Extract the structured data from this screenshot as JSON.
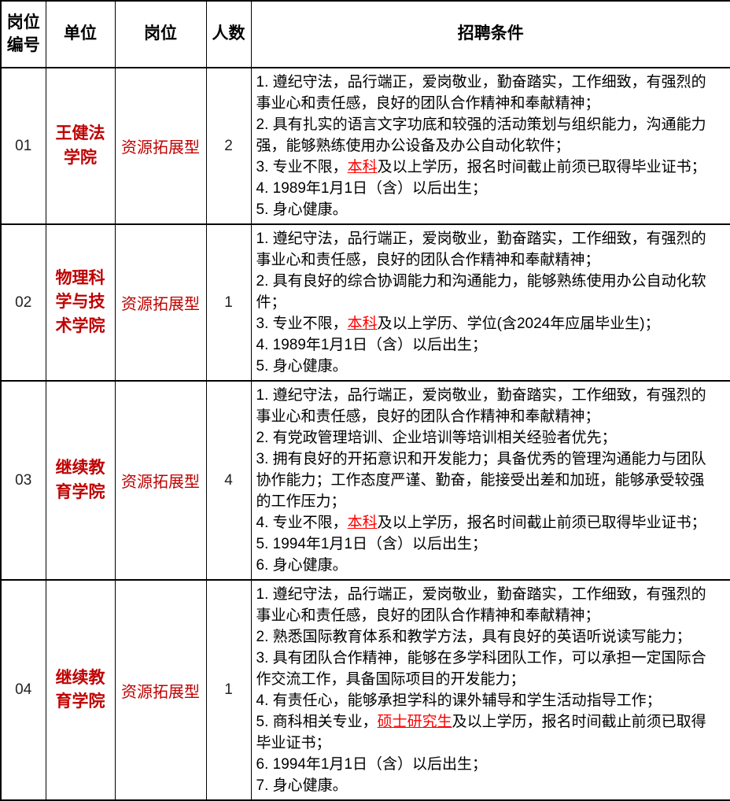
{
  "colors": {
    "border": "#000000",
    "unit_red": "#c00000",
    "highlight_red": "#ff0000"
  },
  "table": {
    "headers": [
      "岗位编号",
      "单位",
      "岗位",
      "人数",
      "招聘条件"
    ],
    "rows": [
      {
        "post_id": "01",
        "unit": "王健法学院",
        "position": "资源拓展型",
        "count": "2",
        "conditions": [
          [
            {
              "t": "1. 遵纪守法，品行端正，爱岗敬业，勤奋踏实，工作细致，有强烈的事业心和责任感，良好的团队合作精神和奉献精神；"
            }
          ],
          [
            {
              "t": "2. 具有扎实的语言文字功底和较强的活动策划与组织能力，沟通能力强，能够熟练使用办公设备及办公自动化软件；"
            }
          ],
          [
            {
              "t": "3. 专业不限，"
            },
            {
              "t": "本科",
              "hl": true
            },
            {
              "t": "及以上学历，报名时间截止前须已取得毕业证书；"
            }
          ],
          [
            {
              "t": "4. 1989年1月1日（含）以后出生；"
            }
          ],
          [
            {
              "t": "5. 身心健康。"
            }
          ]
        ]
      },
      {
        "post_id": "02",
        "unit": "物理科学与技术学院",
        "position": "资源拓展型",
        "count": "1",
        "conditions": [
          [
            {
              "t": "1. 遵纪守法，品行端正，爱岗敬业，勤奋踏实，工作细致，有强烈的事业心和责任感，良好的团队合作精神和奉献精神；"
            }
          ],
          [
            {
              "t": "2. 具有良好的综合协调能力和沟通能力，能够熟练使用办公自动化软件；"
            }
          ],
          [
            {
              "t": "3. 专业不限，"
            },
            {
              "t": "本科",
              "hl": true
            },
            {
              "t": "及以上学历、学位(含2024年应届毕业生)；"
            }
          ],
          [
            {
              "t": "4. 1989年1月1日（含）以后出生；"
            }
          ],
          [
            {
              "t": "5. 身心健康。"
            }
          ]
        ]
      },
      {
        "post_id": "03",
        "unit": "继续教育学院",
        "position": "资源拓展型",
        "count": "4",
        "conditions": [
          [
            {
              "t": "1. 遵纪守法，品行端正，爱岗敬业，勤奋踏实，工作细致，有强烈的事业心和责任感，良好的团队合作精神和奉献精神；"
            }
          ],
          [
            {
              "t": "2. 有党政管理培训、企业培训等培训相关经验者优先；"
            }
          ],
          [
            {
              "t": "3. 拥有良好的开拓意识和开发能力；具备优秀的管理沟通能力与团队协作能力；工作态度严谨、勤奋，能接受出差和加班，能够承受较强的工作压力；"
            }
          ],
          [
            {
              "t": "4. 专业不限，"
            },
            {
              "t": "本科",
              "hl": true
            },
            {
              "t": "及以上学历，报名时间截止前须已取得毕业证书；"
            }
          ],
          [
            {
              "t": "5. 1994年1月1日（含）以后出生；"
            }
          ],
          [
            {
              "t": "6. 身心健康。"
            }
          ]
        ]
      },
      {
        "post_id": "04",
        "unit": "继续教育学院",
        "position": "资源拓展型",
        "count": "1",
        "conditions": [
          [
            {
              "t": "1. 遵纪守法，品行端正，爱岗敬业，勤奋踏实，工作细致，有强烈的事业心和责任感，良好的团队合作精神和奉献精神；"
            }
          ],
          [
            {
              "t": "2. 熟悉国际教育体系和教学方法，具有良好的英语听说读写能力；"
            }
          ],
          [
            {
              "t": "3. 具有团队合作精神，能够在多学科团队工作，可以承担一定国际合作交流工作，具备国际项目的开发能力；"
            }
          ],
          [
            {
              "t": "4. 有责任心，能够承担学科的课外辅导和学生活动指导工作；"
            }
          ],
          [
            {
              "t": "5. 商科相关专业，"
            },
            {
              "t": "硕士研究生",
              "hl": true
            },
            {
              "t": "及以上学历，报名时间截止前须已取得毕业证书；"
            }
          ],
          [
            {
              "t": "6. 1994年1月1日（含）以后出生；"
            }
          ],
          [
            {
              "t": "7. 身心健康。"
            }
          ]
        ]
      }
    ]
  }
}
